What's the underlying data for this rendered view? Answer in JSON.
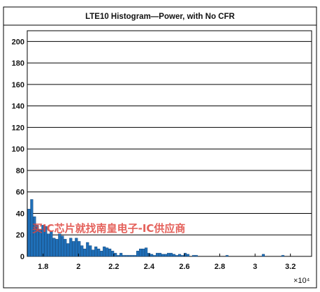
{
  "chart_data": {
    "type": "bar",
    "title": "LTE10 Histogram—Power, with No CFR",
    "xlabel": "",
    "ylabel": "",
    "x_multiplier": "×10⁴",
    "xlim": [
      1.71,
      3.32
    ],
    "ylim": [
      0,
      210
    ],
    "yticks": [
      0,
      20,
      40,
      60,
      80,
      100,
      120,
      140,
      160,
      180,
      200
    ],
    "xticks": [
      1.8,
      2,
      2.2,
      2.4,
      2.6,
      2.8,
      3,
      3.2
    ],
    "xtick_labels": [
      "1.8",
      "2",
      "2.2",
      "2.4",
      "2.6",
      "2.8",
      "3",
      "3.2"
    ],
    "grid": "horizontal",
    "bin_width": 0.0158,
    "x": [
      1.72,
      1.7358,
      1.7516,
      1.7674,
      1.7832,
      1.799,
      1.8148,
      1.8306,
      1.8464,
      1.8622,
      1.878,
      1.8938,
      1.9096,
      1.9254,
      1.9412,
      1.957,
      1.9728,
      1.9886,
      2.0044,
      2.0202,
      2.036,
      2.0518,
      2.0676,
      2.0834,
      2.0992,
      2.115,
      2.1308,
      2.1466,
      2.1624,
      2.1782,
      2.194,
      2.2098,
      2.2256,
      2.2414,
      2.2572,
      2.273,
      2.2888,
      2.3046,
      2.3204,
      2.3362,
      2.352,
      2.3678,
      2.3836,
      2.3994,
      2.4152,
      2.431,
      2.4468,
      2.4626,
      2.4784,
      2.4942,
      2.51,
      2.5258,
      2.5416,
      2.5574,
      2.5732,
      2.589,
      2.6048,
      2.6206,
      2.6364,
      2.6522,
      2.668,
      2.6838,
      2.6996,
      2.7154,
      2.7312,
      2.747,
      2.7628,
      2.7786,
      2.7944,
      2.8102,
      2.826,
      2.8418,
      2.8576,
      2.8734,
      2.8892,
      2.905,
      2.9208,
      2.9366,
      2.9524,
      2.9682,
      2.984,
      2.9998,
      3.0156,
      3.0314,
      3.0472,
      3.063,
      3.0788,
      3.0946,
      3.1104,
      3.1262,
      3.142,
      3.1578,
      3.1736,
      3.1894,
      3.2052,
      3.221
    ],
    "values": [
      44,
      53,
      37,
      29,
      25,
      29,
      28,
      21,
      23,
      17,
      16,
      21,
      19,
      16,
      12,
      17,
      14,
      17,
      14,
      10,
      7,
      13,
      10,
      6,
      9,
      7,
      5,
      9,
      8,
      7,
      5,
      3,
      1,
      3,
      1,
      1,
      1,
      1,
      1,
      5,
      7,
      7,
      8,
      3,
      2,
      1,
      3,
      3,
      2,
      2,
      3,
      3,
      2,
      1,
      2,
      1,
      3,
      2,
      0,
      1,
      1,
      0,
      0,
      0,
      0,
      0,
      0,
      0,
      0,
      0,
      0,
      1,
      0,
      0,
      0,
      0,
      0,
      0,
      0,
      0,
      0,
      0,
      0,
      0,
      2,
      0,
      0,
      0,
      0,
      0,
      0,
      1,
      0,
      0,
      0,
      0
    ]
  },
  "watermark": "买IC芯片就找南皇电子-IC供应商"
}
